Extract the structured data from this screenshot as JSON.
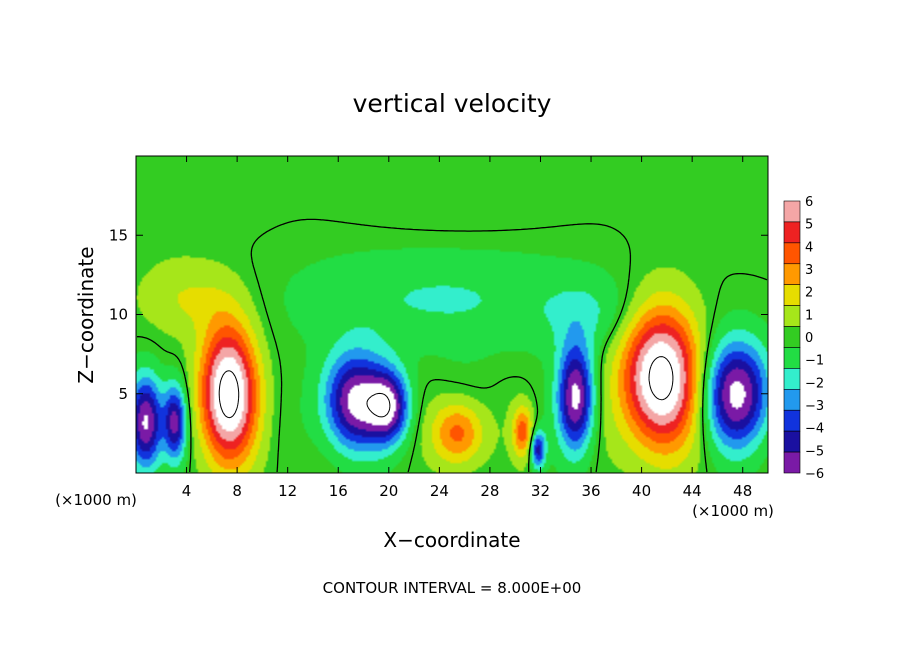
{
  "chart_data": {
    "type": "heatmap",
    "title": "vertical velocity",
    "xlabel": "X−coordinate",
    "ylabel": "Z−coordinate",
    "x_unit": "(×1000 m)",
    "x_unit_right": "(×1000 m)",
    "footer": "CONTOUR INTERVAL = 8.000E+00",
    "xlim": [
      0,
      50
    ],
    "ylim": [
      0,
      20
    ],
    "x_ticks": [
      4,
      8,
      12,
      16,
      20,
      24,
      28,
      32,
      36,
      40,
      44,
      48
    ],
    "y_ticks": [
      5,
      10,
      15
    ],
    "colorbar": {
      "levels": [
        6,
        5,
        4,
        3,
        2,
        1,
        0,
        -1,
        -2,
        -3,
        -4,
        -5,
        -6
      ],
      "colors": [
        "#f4a6a6",
        "#ee2222",
        "#ff5500",
        "#ff9900",
        "#e6dd00",
        "#a6e61a",
        "#33cc22",
        "#22dd44",
        "#33eecc",
        "#2299ee",
        "#1133dd",
        "#1a10a0",
        "#7a1aa6"
      ]
    },
    "features": [
      {
        "x": 7.3,
        "z": 5.0,
        "value": 9,
        "rx": 2.2,
        "rz": 4.2
      },
      {
        "x": 41.5,
        "z": 6.0,
        "value": 9,
        "rx": 3.0,
        "rz": 4.3
      },
      {
        "x": 25.5,
        "z": 2.5,
        "value": 4,
        "rx": 2.0,
        "rz": 2.0
      },
      {
        "x": 30.6,
        "z": 2.6,
        "value": 4,
        "rx": 0.8,
        "rz": 1.6
      },
      {
        "x": 4.1,
        "z": 11.0,
        "value": 1.6,
        "rx": 3.8,
        "rz": 2.3
      },
      {
        "x": 0.8,
        "z": 3.2,
        "value": -7,
        "rx": 1.3,
        "rz": 2.9
      },
      {
        "x": 3.1,
        "z": 3.2,
        "value": -6,
        "rx": 0.9,
        "rz": 2.4
      },
      {
        "x": 17.3,
        "z": 4.5,
        "value": -7,
        "rx": 2.4,
        "rz": 3.0
      },
      {
        "x": 20.0,
        "z": 4.2,
        "value": -6,
        "rx": 1.6,
        "rz": 2.2
      },
      {
        "x": 34.8,
        "z": 4.8,
        "value": -7,
        "rx": 1.4,
        "rz": 3.3
      },
      {
        "x": 47.5,
        "z": 5.0,
        "value": -7,
        "rx": 2.6,
        "rz": 3.3
      },
      {
        "x": 31.8,
        "z": 1.5,
        "value": -5,
        "rx": 0.6,
        "rz": 1.2
      },
      {
        "x": 24.2,
        "z": 11.0,
        "value": -1.6,
        "rx": 12.0,
        "rz": 3.5
      },
      {
        "x": 36.0,
        "z": 10.0,
        "value": -1.2,
        "rx": 4.0,
        "rz": 2.2
      }
    ]
  }
}
